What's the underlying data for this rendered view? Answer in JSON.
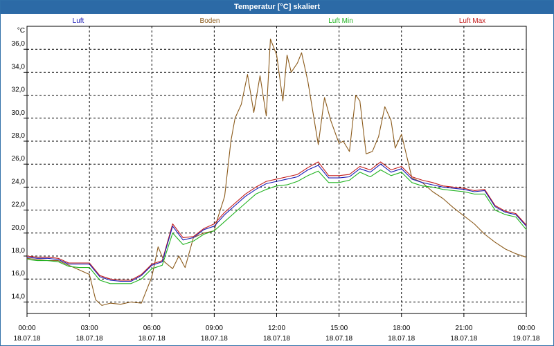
{
  "window": {
    "title": "Temperatur [°C] skaliert"
  },
  "chart_data": {
    "type": "line",
    "title": "Temperatur [°C] skaliert",
    "ylabel": "°C",
    "ylim": [
      13,
      38
    ],
    "xlim": [
      0,
      24
    ],
    "grid": true,
    "legend_position": "top",
    "y_ticks": [
      "14,0",
      "16,0",
      "18,0",
      "20,0",
      "22,0",
      "24,0",
      "26,0",
      "28,0",
      "30,0",
      "32,0",
      "34,0",
      "36,0"
    ],
    "y_tick_values": [
      14,
      16,
      18,
      20,
      22,
      24,
      26,
      28,
      30,
      32,
      34,
      36
    ],
    "x_tick_values": [
      0,
      3,
      6,
      9,
      12,
      15,
      18,
      21,
      24
    ],
    "x_ticks": [
      {
        "time": "00:00",
        "date": "18.07.18"
      },
      {
        "time": "03:00",
        "date": "18.07.18"
      },
      {
        "time": "06:00",
        "date": "18.07.18"
      },
      {
        "time": "09:00",
        "date": "18.07.18"
      },
      {
        "time": "12:00",
        "date": "18.07.18"
      },
      {
        "time": "15:00",
        "date": "18.07.18"
      },
      {
        "time": "18:00",
        "date": "18.07.18"
      },
      {
        "time": "21:00",
        "date": "18.07.18"
      },
      {
        "time": "00:00",
        "date": "19.07.18"
      }
    ],
    "series": [
      {
        "name": "Luft",
        "color": "#1b1bb4",
        "x": [
          0,
          0.5,
          1,
          1.5,
          2,
          2.5,
          3,
          3.5,
          4,
          4.5,
          5,
          5.5,
          6,
          6.5,
          7,
          7.5,
          8,
          8.5,
          9,
          9.5,
          10,
          10.5,
          11,
          11.5,
          12,
          12.5,
          13,
          13.5,
          14,
          14.5,
          15,
          15.5,
          16,
          16.5,
          17,
          17.5,
          18,
          18.5,
          19,
          19.5,
          20,
          20.5,
          21,
          21.5,
          22,
          22.5,
          23,
          23.5,
          24
        ],
        "values": [
          17.9,
          17.8,
          17.8,
          17.7,
          17.3,
          17.3,
          17.3,
          16.2,
          15.9,
          15.8,
          15.8,
          16.3,
          17.2,
          17.5,
          20.6,
          19.4,
          19.6,
          20.3,
          20.6,
          21.6,
          22.4,
          23.2,
          23.8,
          24.3,
          24.5,
          24.7,
          24.9,
          25.5,
          25.9,
          24.8,
          24.8,
          24.9,
          25.6,
          25.3,
          26.0,
          25.3,
          25.6,
          24.7,
          24.4,
          24.2,
          24.0,
          23.9,
          23.8,
          23.6,
          23.7,
          22.3,
          21.8,
          21.6,
          20.6
        ]
      },
      {
        "name": "Boden",
        "color": "#8b5a1a",
        "x": [
          0,
          0.5,
          1,
          1.5,
          2,
          2.5,
          3,
          3.3,
          3.6,
          4,
          4.5,
          5,
          5.5,
          6,
          6.3,
          6.6,
          7,
          7.3,
          7.6,
          8,
          8.5,
          9,
          9.2,
          9.5,
          9.8,
          10,
          10.3,
          10.6,
          10.9,
          11.2,
          11.5,
          11.7,
          12,
          12.3,
          12.5,
          12.7,
          13,
          13.2,
          13.5,
          14,
          14.3,
          14.6,
          15,
          15.2,
          15.5,
          15.8,
          16,
          16.3,
          16.6,
          16.9,
          17.2,
          17.5,
          17.7,
          18,
          18.5,
          19,
          19.5,
          20,
          20.5,
          21,
          21.5,
          22,
          22.5,
          23,
          23.5,
          24
        ],
        "values": [
          17.8,
          17.7,
          17.6,
          17.6,
          17.2,
          16.8,
          16.4,
          14.2,
          13.7,
          13.9,
          13.8,
          14.0,
          13.9,
          16.2,
          18.8,
          17.5,
          16.9,
          18.0,
          17.0,
          19.6,
          20.0,
          20.2,
          21.5,
          23.2,
          28.0,
          30.0,
          31.2,
          33.8,
          30.5,
          33.7,
          30.2,
          36.9,
          35.5,
          31.5,
          35.5,
          34.0,
          34.8,
          35.7,
          33.2,
          27.7,
          31.8,
          29.8,
          27.8,
          28.0,
          27.1,
          32.0,
          31.5,
          26.9,
          27.1,
          28.4,
          31.0,
          29.8,
          27.4,
          28.6,
          24.8,
          24.4,
          23.6,
          23.0,
          22.2,
          21.5,
          20.8,
          19.9,
          19.2,
          18.6,
          18.2,
          17.9
        ]
      },
      {
        "name": "Luft Min",
        "color": "#1fb21f",
        "x": [
          0,
          0.5,
          1,
          1.5,
          2,
          2.5,
          3,
          3.5,
          4,
          4.5,
          5,
          5.5,
          6,
          6.5,
          7,
          7.5,
          8,
          8.5,
          9,
          9.5,
          10,
          10.5,
          11,
          11.5,
          12,
          12.5,
          13,
          13.5,
          14,
          14.5,
          15,
          15.5,
          16,
          16.5,
          17,
          17.5,
          18,
          18.5,
          19,
          19.5,
          20,
          20.5,
          21,
          21.5,
          22,
          22.5,
          23,
          23.5,
          24
        ],
        "values": [
          17.7,
          17.6,
          17.6,
          17.5,
          17.1,
          17.0,
          17.0,
          15.9,
          15.6,
          15.6,
          15.6,
          16.0,
          16.9,
          17.2,
          20.0,
          19.0,
          19.3,
          19.9,
          20.2,
          21.0,
          21.8,
          22.6,
          23.4,
          23.8,
          24.1,
          24.2,
          24.5,
          25.0,
          25.4,
          24.4,
          24.4,
          24.6,
          25.3,
          24.9,
          25.5,
          25.0,
          25.3,
          24.4,
          24.1,
          24.0,
          23.8,
          23.7,
          23.6,
          23.4,
          23.4,
          22.0,
          21.6,
          21.4,
          20.3
        ]
      },
      {
        "name": "Luft Max",
        "color": "#c21a1a",
        "x": [
          0,
          0.5,
          1,
          1.5,
          2,
          2.5,
          3,
          3.5,
          4,
          4.5,
          5,
          5.5,
          6,
          6.5,
          7,
          7.5,
          8,
          8.5,
          9,
          9.5,
          10,
          10.5,
          11,
          11.5,
          12,
          12.5,
          13,
          13.5,
          14,
          14.5,
          15,
          15.5,
          16,
          16.5,
          17,
          17.5,
          18,
          18.5,
          19,
          19.5,
          20,
          20.5,
          21,
          21.5,
          22,
          22.5,
          23,
          23.5,
          24
        ],
        "values": [
          18.0,
          17.9,
          17.9,
          17.8,
          17.4,
          17.4,
          17.4,
          16.3,
          16.0,
          15.9,
          15.9,
          16.4,
          17.3,
          17.6,
          20.8,
          19.6,
          19.7,
          20.4,
          20.8,
          21.8,
          22.6,
          23.4,
          24.0,
          24.5,
          24.7,
          24.9,
          25.1,
          25.7,
          26.2,
          25.0,
          25.0,
          25.1,
          25.8,
          25.5,
          26.2,
          25.5,
          25.8,
          24.9,
          24.6,
          24.4,
          24.1,
          24.0,
          23.9,
          23.7,
          23.8,
          22.4,
          21.9,
          21.7,
          20.7
        ]
      }
    ]
  }
}
